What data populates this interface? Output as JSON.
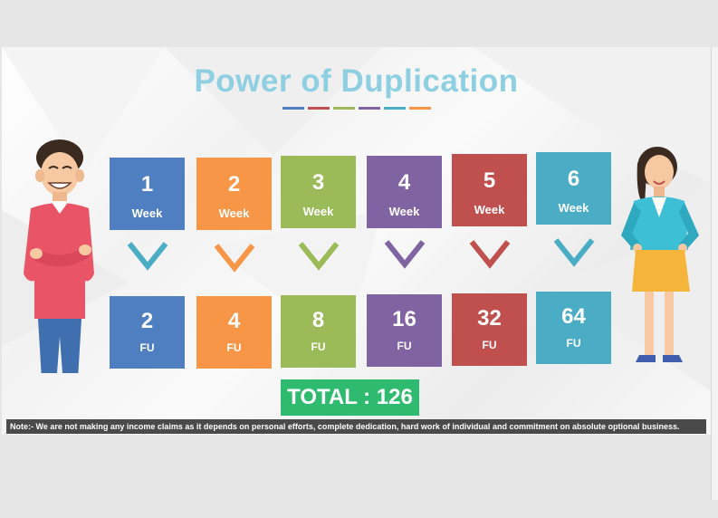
{
  "title": "Power of Duplication",
  "colors": {
    "blue": "#4f7fc0",
    "orange": "#f79646",
    "green": "#9bbb59",
    "purple": "#8064a2",
    "red": "#c0504d",
    "teal": "#4bacc6"
  },
  "weeks": [
    {
      "num": "1",
      "label": "Week"
    },
    {
      "num": "2",
      "label": "Week"
    },
    {
      "num": "3",
      "label": "Week"
    },
    {
      "num": "4",
      "label": "Week"
    },
    {
      "num": "5",
      "label": "Week"
    },
    {
      "num": "6",
      "label": "Week"
    }
  ],
  "fus": [
    {
      "num": "2",
      "label": "FU"
    },
    {
      "num": "4",
      "label": "FU"
    },
    {
      "num": "8",
      "label": "FU"
    },
    {
      "num": "16",
      "label": "FU"
    },
    {
      "num": "32",
      "label": "FU"
    },
    {
      "num": "64",
      "label": "FU"
    }
  ],
  "total": "TOTAL : 126",
  "note": "Note:- We are not making any income claims as it depends on personal efforts, complete dedication, hard work of individual and commitment on absolute optional  business.",
  "icons": [
    "man-illustration",
    "woman-illustration",
    "chevron-down-icon"
  ]
}
